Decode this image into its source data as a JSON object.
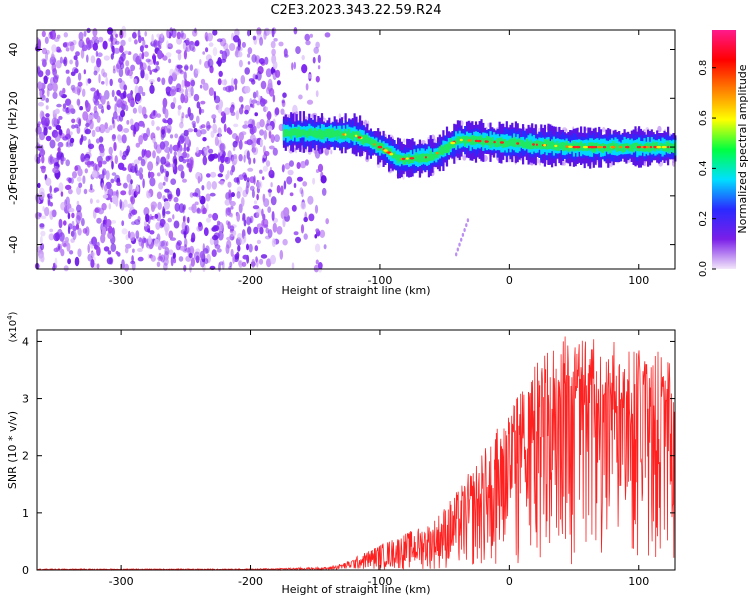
{
  "title": "C2E3.2023.343.22.59.R24",
  "chart_data": [
    {
      "type": "heatmap",
      "xlabel": "Height of straight line (km)",
      "ylabel": "Frequency (Hz)",
      "xlim": [
        -365,
        128
      ],
      "ylim": [
        -50,
        48
      ],
      "xticks": [
        -300,
        -200,
        -100,
        0,
        100
      ],
      "xtick_labels": [
        "-300",
        "-200",
        "-100",
        "0",
        "100"
      ],
      "yticks": [
        -40,
        -20,
        0,
        20,
        40
      ],
      "ytick_labels": [
        "-40",
        "-20",
        "0",
        "20",
        "40"
      ],
      "noise_region": [
        -365,
        -150
      ],
      "signal_band": {
        "x_start": -175,
        "x_end": 128,
        "center_hz": [
          [
            -175,
            6
          ],
          [
            -120,
            5
          ],
          [
            -100,
            0
          ],
          [
            -85,
            -5
          ],
          [
            -60,
            -4
          ],
          [
            -40,
            3
          ],
          [
            -10,
            2
          ],
          [
            50,
            0
          ],
          [
            128,
            0
          ]
        ],
        "half_width_hz": 3
      },
      "colorbar": {
        "label": "Normalized spectral amplitude",
        "range": [
          0.0,
          0.95
        ],
        "ticks": [
          0.0,
          0.2,
          0.4,
          0.6,
          0.8
        ],
        "tick_labels": [
          "0.0",
          "0.2",
          "0.4",
          "0.6",
          "0.8"
        ],
        "colors": [
          "#f2e6fa",
          "#7b1fe8",
          "#2a2aff",
          "#00e0ff",
          "#00ff40",
          "#ffff00",
          "#ff7f00",
          "#ff0000",
          "#ff1a8c"
        ]
      }
    },
    {
      "type": "line",
      "xlabel": "Height of straight line (km)",
      "ylabel": "SNR (10 * v/v)",
      "scale_label": "(x10^4)",
      "scale_base": "(x10",
      "scale_exp": "4",
      "scale_close": ")",
      "xlim": [
        -365,
        128
      ],
      "ylim": [
        0,
        4.2
      ],
      "xticks": [
        -300,
        -200,
        -100,
        0,
        100
      ],
      "xtick_labels": [
        "-300",
        "-200",
        "-100",
        "0",
        "100"
      ],
      "yticks": [
        0,
        1,
        2,
        3,
        4
      ],
      "ytick_labels": [
        "0",
        "1",
        "2",
        "3",
        "4"
      ],
      "series": [
        {
          "color": "#ff2020",
          "envelope": [
            [
              -365,
              0.02
            ],
            [
              -200,
              0.02
            ],
            [
              -140,
              0.05
            ],
            [
              -125,
              0.15
            ],
            [
              -100,
              0.45
            ],
            [
              -80,
              0.65
            ],
            [
              -60,
              0.85
            ],
            [
              -40,
              1.4
            ],
            [
              -20,
              2.1
            ],
            [
              0,
              2.9
            ],
            [
              20,
              3.6
            ],
            [
              40,
              4.1
            ],
            [
              60,
              4.1
            ],
            [
              80,
              4.0
            ],
            [
              100,
              3.9
            ],
            [
              128,
              3.8
            ]
          ]
        }
      ]
    }
  ]
}
